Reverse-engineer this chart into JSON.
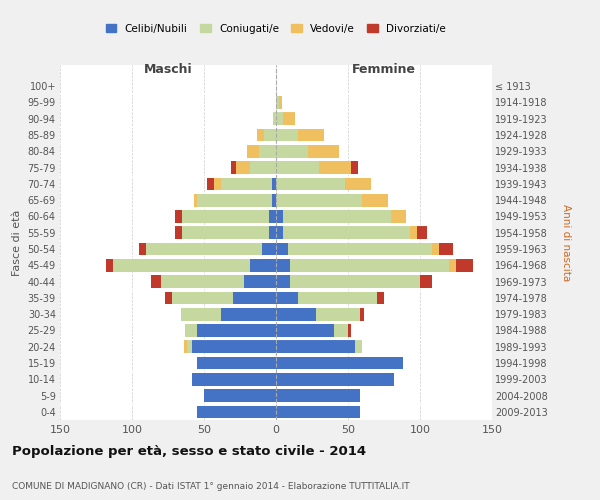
{
  "age_groups": [
    "0-4",
    "5-9",
    "10-14",
    "15-19",
    "20-24",
    "25-29",
    "30-34",
    "35-39",
    "40-44",
    "45-49",
    "50-54",
    "55-59",
    "60-64",
    "65-69",
    "70-74",
    "75-79",
    "80-84",
    "85-89",
    "90-94",
    "95-99",
    "100+"
  ],
  "birth_years": [
    "2009-2013",
    "2004-2008",
    "1999-2003",
    "1994-1998",
    "1989-1993",
    "1984-1988",
    "1979-1983",
    "1974-1978",
    "1969-1973",
    "1964-1968",
    "1959-1963",
    "1954-1958",
    "1949-1953",
    "1944-1948",
    "1939-1943",
    "1934-1938",
    "1929-1933",
    "1924-1928",
    "1919-1923",
    "1914-1918",
    "≤ 1913"
  ],
  "maschi": {
    "celibi": [
      55,
      50,
      58,
      55,
      58,
      55,
      38,
      30,
      22,
      18,
      10,
      5,
      5,
      3,
      3,
      0,
      0,
      0,
      0,
      0,
      0
    ],
    "coniugati": [
      0,
      0,
      0,
      0,
      4,
      8,
      28,
      42,
      58,
      95,
      80,
      60,
      60,
      52,
      35,
      18,
      12,
      8,
      2,
      0,
      0
    ],
    "vedovi": [
      0,
      0,
      0,
      0,
      2,
      0,
      0,
      0,
      0,
      0,
      0,
      0,
      0,
      2,
      5,
      10,
      8,
      5,
      0,
      0,
      0
    ],
    "divorziati": [
      0,
      0,
      0,
      0,
      0,
      0,
      0,
      5,
      7,
      5,
      5,
      5,
      5,
      0,
      5,
      3,
      0,
      0,
      0,
      0,
      0
    ]
  },
  "femmine": {
    "nubili": [
      58,
      58,
      82,
      88,
      55,
      40,
      28,
      15,
      10,
      10,
      8,
      5,
      5,
      0,
      0,
      0,
      0,
      0,
      0,
      0,
      0
    ],
    "coniugate": [
      0,
      0,
      0,
      0,
      5,
      10,
      30,
      55,
      90,
      110,
      100,
      88,
      75,
      60,
      48,
      30,
      22,
      15,
      5,
      2,
      0
    ],
    "vedove": [
      0,
      0,
      0,
      0,
      0,
      0,
      0,
      0,
      0,
      5,
      5,
      5,
      10,
      18,
      18,
      22,
      22,
      18,
      8,
      2,
      0
    ],
    "divorziate": [
      0,
      0,
      0,
      0,
      0,
      2,
      3,
      5,
      8,
      12,
      10,
      7,
      0,
      0,
      0,
      5,
      0,
      0,
      0,
      0,
      0
    ]
  },
  "colors": {
    "celibi_nubili": "#4472c4",
    "coniugati": "#c5d8a0",
    "vedovi": "#f0c060",
    "divorziati": "#c0392b"
  },
  "title": "Popolazione per età, sesso e stato civile - 2014",
  "subtitle": "COMUNE DI MADIGNANO (CR) - Dati ISTAT 1° gennaio 2014 - Elaborazione TUTTITALIA.IT",
  "ylabel_left": "Fasce di età",
  "ylabel_right": "Anni di nascita",
  "xlabel_left": "Maschi",
  "xlabel_right": "Femmine",
  "xlim": 150,
  "bg_color": "#f0f0f0",
  "plot_bg": "#ffffff"
}
